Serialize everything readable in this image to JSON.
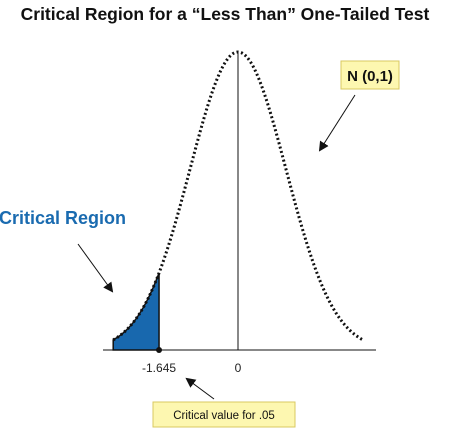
{
  "title": "Critical Region for a “Less Than” One-Tailed Test",
  "distribution_label": "N (0,1)",
  "critical_region_label": "Critical Region",
  "critical_value_label": "Critical value for .05",
  "ticks": {
    "critical": "-1.645",
    "mean": "0"
  },
  "colors": {
    "region_fill": "#1868ae",
    "region_label": "#1a6bb0",
    "box_fill": "#fdf7b0",
    "box_border": "#d9c860",
    "curve": "#111111"
  },
  "chart_data": {
    "type": "area",
    "distribution": "standard-normal",
    "mean": 0,
    "sd": 1,
    "x_range": [
      -2.6,
      2.6
    ],
    "critical_value": -1.645,
    "alpha": 0.05,
    "tail": "left",
    "shaded_region": [
      -2.6,
      -1.645
    ]
  }
}
